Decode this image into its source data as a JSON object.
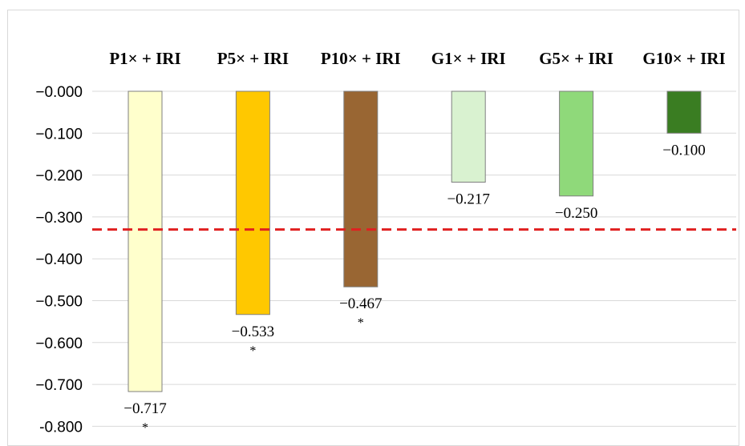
{
  "chart_data": {
    "type": "bar",
    "categories": [
      "P1× + IRI",
      "P5× + IRI",
      "P10× + IRI",
      "G1× + IRI",
      "G5× + IRI",
      "G10× + IRI"
    ],
    "values": [
      -0.717,
      -0.533,
      -0.467,
      -0.217,
      -0.25,
      -0.1
    ],
    "data_labels": [
      "−0.717",
      "−0.533",
      "−0.467",
      "−0.217",
      "−0.250",
      "−0.100"
    ],
    "significance": [
      "*",
      "*",
      "*",
      "",
      "",
      ""
    ],
    "colors": [
      "#ffffcc",
      "#ffc800",
      "#996633",
      "#d9f2d0",
      "#8fd97a",
      "#3a7d22"
    ],
    "yticks": [
      0,
      -0.1,
      -0.2,
      -0.3,
      -0.4,
      -0.5,
      -0.6,
      -0.7,
      -0.8
    ],
    "ytick_labels": [
      "−0.000",
      "−0.100",
      "−0.200",
      "−0.300",
      "−0.400",
      "−0.500",
      "−0.600",
      "−0.700",
      "-0.800"
    ],
    "ylim": [
      -0.8,
      0
    ],
    "reference_line": {
      "value": -0.33,
      "color": "#e02020",
      "style": "dashed"
    },
    "grid": true,
    "category_labels_position": "top"
  }
}
